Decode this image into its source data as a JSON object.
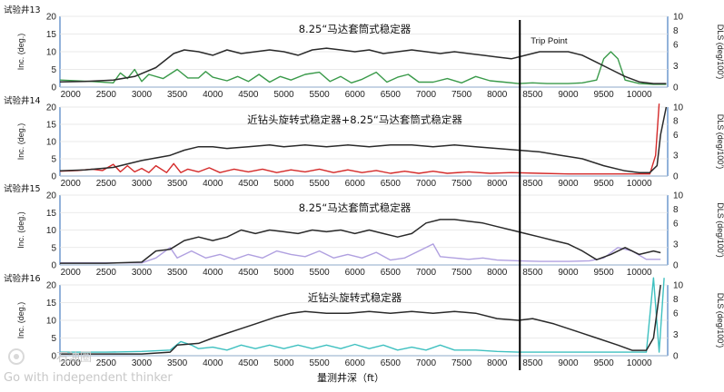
{
  "chart_data": [
    {
      "type": "line",
      "well_label": "试验井13",
      "title": "8.25“马达套筒式稳定器",
      "ylabel_left": "Inc. (deg.)",
      "ylabel_right": "DLS (deg/100’)",
      "ylim_left": [
        0,
        20
      ],
      "yticks_left": [
        0,
        5,
        10,
        15,
        20
      ],
      "ylim_right": [
        0,
        10
      ],
      "yticks_right": [
        0,
        3,
        6,
        8,
        10
      ],
      "x_ticks": [
        2000,
        2500,
        3000,
        3500,
        4000,
        4500,
        5000,
        5500,
        6000,
        6500,
        7000,
        7500,
        8000,
        8500,
        9000,
        9500,
        10000
      ],
      "xlim": [
        1850,
        10400
      ],
      "inc_color": "#2a2a2a",
      "dls_color": "#3a9a4a",
      "inc": [
        [
          1850,
          1.5
        ],
        [
          2200,
          1.6
        ],
        [
          2600,
          2
        ],
        [
          2900,
          3
        ],
        [
          3200,
          5.5
        ],
        [
          3450,
          9.5
        ],
        [
          3600,
          10.5
        ],
        [
          3800,
          10
        ],
        [
          4000,
          9
        ],
        [
          4200,
          10.5
        ],
        [
          4400,
          9.5
        ],
        [
          4600,
          10
        ],
        [
          4800,
          10.5
        ],
        [
          5000,
          10
        ],
        [
          5200,
          9
        ],
        [
          5400,
          10.5
        ],
        [
          5600,
          11
        ],
        [
          5800,
          10.5
        ],
        [
          6000,
          10
        ],
        [
          6200,
          10.5
        ],
        [
          6400,
          9.5
        ],
        [
          6600,
          10
        ],
        [
          6800,
          10.5
        ],
        [
          7000,
          10
        ],
        [
          7200,
          9.5
        ],
        [
          7400,
          10
        ],
        [
          7600,
          9.5
        ],
        [
          7800,
          9
        ],
        [
          8000,
          8.5
        ],
        [
          8200,
          8
        ],
        [
          8400,
          9
        ],
        [
          8600,
          10
        ],
        [
          8800,
          10
        ],
        [
          9000,
          10
        ],
        [
          9200,
          9
        ],
        [
          9400,
          7
        ],
        [
          9600,
          5
        ],
        [
          9800,
          3
        ],
        [
          10000,
          1.5
        ],
        [
          10200,
          1
        ],
        [
          10380,
          1
        ]
      ],
      "dls": [
        [
          1850,
          1
        ],
        [
          2300,
          0.8
        ],
        [
          2600,
          0.6
        ],
        [
          2700,
          2
        ],
        [
          2800,
          1.2
        ],
        [
          2900,
          2.5
        ],
        [
          3000,
          0.8
        ],
        [
          3100,
          1.8
        ],
        [
          3300,
          1.2
        ],
        [
          3500,
          2.5
        ],
        [
          3650,
          1.3
        ],
        [
          3800,
          1.3
        ],
        [
          3900,
          2.2
        ],
        [
          4000,
          1.4
        ],
        [
          4200,
          0.9
        ],
        [
          4350,
          1.5
        ],
        [
          4500,
          0.8
        ],
        [
          4650,
          1.8
        ],
        [
          4800,
          0.7
        ],
        [
          4950,
          1.5
        ],
        [
          5100,
          1
        ],
        [
          5300,
          1.8
        ],
        [
          5500,
          2.1
        ],
        [
          5650,
          0.8
        ],
        [
          5800,
          1.5
        ],
        [
          5950,
          0.6
        ],
        [
          6100,
          1.1
        ],
        [
          6300,
          2.1
        ],
        [
          6450,
          0.7
        ],
        [
          6600,
          1.4
        ],
        [
          6750,
          1.8
        ],
        [
          6900,
          0.7
        ],
        [
          7100,
          0.7
        ],
        [
          7300,
          1.2
        ],
        [
          7500,
          0.6
        ],
        [
          7700,
          1.5
        ],
        [
          7900,
          0.9
        ],
        [
          8100,
          0.7
        ],
        [
          8300,
          0.5
        ],
        [
          8500,
          0.6
        ],
        [
          8700,
          0.5
        ],
        [
          9000,
          0.5
        ],
        [
          9200,
          0.6
        ],
        [
          9400,
          1
        ],
        [
          9500,
          4
        ],
        [
          9600,
          5
        ],
        [
          9700,
          4
        ],
        [
          9800,
          1
        ],
        [
          10000,
          0.5
        ],
        [
          10200,
          0.4
        ],
        [
          10380,
          0.4
        ]
      ]
    },
    {
      "type": "line",
      "well_label": "试验井14",
      "title": "近钻头旋转式稳定器+8.25“马达套筒式稳定器",
      "ylabel_left": "Inc. (deg.)",
      "ylabel_right": "DLS (deg/100’)",
      "ylim_left": [
        0,
        20
      ],
      "yticks_left": [
        0,
        5,
        10,
        15,
        20
      ],
      "ylim_right": [
        0,
        10
      ],
      "yticks_right": [
        0,
        3,
        6,
        8,
        10
      ],
      "x_ticks": [
        2000,
        2500,
        3000,
        3500,
        4000,
        4500,
        5000,
        5500,
        6000,
        6500,
        7000,
        7500,
        8000,
        8500,
        9000,
        9500,
        10000
      ],
      "xlim": [
        1850,
        10400
      ],
      "inc_color": "#2a2a2a",
      "dls_color": "#d42a2a",
      "inc": [
        [
          1850,
          1.5
        ],
        [
          2200,
          1.8
        ],
        [
          2600,
          2.5
        ],
        [
          3000,
          4.5
        ],
        [
          3400,
          6
        ],
        [
          3600,
          7.5
        ],
        [
          3800,
          8.5
        ],
        [
          4000,
          8.5
        ],
        [
          4200,
          8
        ],
        [
          4500,
          8.5
        ],
        [
          4800,
          9
        ],
        [
          5000,
          8.5
        ],
        [
          5300,
          9
        ],
        [
          5600,
          8.5
        ],
        [
          5900,
          9
        ],
        [
          6200,
          8.5
        ],
        [
          6500,
          9
        ],
        [
          6800,
          9
        ],
        [
          7100,
          8.5
        ],
        [
          7400,
          9
        ],
        [
          7700,
          8.5
        ],
        [
          8000,
          8
        ],
        [
          8300,
          7.5
        ],
        [
          8600,
          7
        ],
        [
          8900,
          6
        ],
        [
          9200,
          5
        ],
        [
          9500,
          3
        ],
        [
          9800,
          1.5
        ],
        [
          10000,
          1
        ],
        [
          10150,
          1
        ],
        [
          10250,
          3
        ],
        [
          10300,
          12
        ],
        [
          10380,
          20
        ]
      ],
      "dls": [
        [
          1850,
          0.7
        ],
        [
          2100,
          0.8
        ],
        [
          2300,
          1
        ],
        [
          2450,
          0.8
        ],
        [
          2600,
          1.7
        ],
        [
          2700,
          0.6
        ],
        [
          2800,
          1.5
        ],
        [
          2900,
          0.6
        ],
        [
          3000,
          1.1
        ],
        [
          3100,
          0.5
        ],
        [
          3200,
          1.5
        ],
        [
          3350,
          0.5
        ],
        [
          3450,
          1.8
        ],
        [
          3550,
          0.5
        ],
        [
          3650,
          1
        ],
        [
          3800,
          0.6
        ],
        [
          3950,
          1.2
        ],
        [
          4100,
          0.5
        ],
        [
          4300,
          1
        ],
        [
          4500,
          0.6
        ],
        [
          4700,
          1
        ],
        [
          4900,
          0.5
        ],
        [
          5100,
          0.9
        ],
        [
          5300,
          0.6
        ],
        [
          5500,
          1
        ],
        [
          5700,
          0.5
        ],
        [
          5900,
          0.9
        ],
        [
          6100,
          0.5
        ],
        [
          6300,
          0.8
        ],
        [
          6500,
          0.4
        ],
        [
          6700,
          0.7
        ],
        [
          6900,
          0.4
        ],
        [
          7100,
          0.7
        ],
        [
          7300,
          0.4
        ],
        [
          7600,
          0.6
        ],
        [
          7900,
          0.4
        ],
        [
          8200,
          0.5
        ],
        [
          8600,
          0.4
        ],
        [
          9000,
          0.3
        ],
        [
          9400,
          0.3
        ],
        [
          9800,
          0.3
        ],
        [
          10150,
          0.3
        ],
        [
          10230,
          3
        ],
        [
          10280,
          10.5
        ]
      ]
    },
    {
      "type": "line",
      "well_label": "试验井15",
      "title": "8.25“马达套筒式稳定器",
      "ylabel_left": "Inc. (deg.)",
      "ylabel_right": "DLS (deg/100’)",
      "ylim_left": [
        0,
        20
      ],
      "yticks_left": [
        0,
        5,
        10,
        15,
        20
      ],
      "ylim_right": [
        0,
        10
      ],
      "yticks_right": [
        0,
        3,
        6,
        8,
        10
      ],
      "x_ticks": [
        2000,
        2500,
        3000,
        3500,
        4000,
        4500,
        5000,
        5500,
        6000,
        6500,
        7000,
        7500,
        8000,
        8500,
        9000,
        9500,
        10000
      ],
      "xlim": [
        1850,
        10400
      ],
      "inc_color": "#2a2a2a",
      "dls_color": "#b0a0e0",
      "inc": [
        [
          1850,
          0.5
        ],
        [
          2500,
          0.5
        ],
        [
          3000,
          0.8
        ],
        [
          3200,
          4
        ],
        [
          3400,
          4.5
        ],
        [
          3600,
          7
        ],
        [
          3800,
          8
        ],
        [
          4000,
          7
        ],
        [
          4200,
          8
        ],
        [
          4400,
          10
        ],
        [
          4600,
          9
        ],
        [
          4800,
          10
        ],
        [
          5000,
          9.5
        ],
        [
          5200,
          9
        ],
        [
          5400,
          10
        ],
        [
          5600,
          9.5
        ],
        [
          5800,
          10
        ],
        [
          6000,
          9
        ],
        [
          6200,
          10
        ],
        [
          6400,
          9
        ],
        [
          6600,
          8
        ],
        [
          6800,
          9
        ],
        [
          7000,
          12
        ],
        [
          7200,
          13
        ],
        [
          7400,
          13
        ],
        [
          7600,
          12.5
        ],
        [
          7800,
          12
        ],
        [
          8000,
          11
        ],
        [
          8200,
          10
        ],
        [
          8400,
          9
        ],
        [
          8600,
          8
        ],
        [
          8800,
          7
        ],
        [
          9000,
          6
        ],
        [
          9200,
          4
        ],
        [
          9400,
          1.5
        ],
        [
          9600,
          3
        ],
        [
          9800,
          5
        ],
        [
          10000,
          3
        ],
        [
          10200,
          4
        ],
        [
          10300,
          3.5
        ]
      ],
      "dls": [
        [
          1850,
          0.3
        ],
        [
          3000,
          0.3
        ],
        [
          3200,
          1
        ],
        [
          3400,
          2.5
        ],
        [
          3500,
          1
        ],
        [
          3700,
          2
        ],
        [
          3900,
          1
        ],
        [
          4100,
          1.5
        ],
        [
          4300,
          0.8
        ],
        [
          4500,
          1.5
        ],
        [
          4700,
          1
        ],
        [
          4900,
          2
        ],
        [
          5100,
          1.5
        ],
        [
          5300,
          1.2
        ],
        [
          5500,
          2
        ],
        [
          5700,
          1
        ],
        [
          5900,
          1.5
        ],
        [
          6100,
          1
        ],
        [
          6300,
          1.8
        ],
        [
          6500,
          0.7
        ],
        [
          6700,
          1
        ],
        [
          6900,
          2
        ],
        [
          7100,
          3
        ],
        [
          7200,
          1.2
        ],
        [
          7400,
          1
        ],
        [
          7600,
          0.8
        ],
        [
          7800,
          1
        ],
        [
          8000,
          0.7
        ],
        [
          8300,
          0.6
        ],
        [
          8600,
          0.5
        ],
        [
          9000,
          0.5
        ],
        [
          9300,
          0.6
        ],
        [
          9500,
          1
        ],
        [
          9700,
          2.5
        ],
        [
          9900,
          2
        ],
        [
          10100,
          0.8
        ],
        [
          10300,
          0.8
        ]
      ]
    },
    {
      "type": "line",
      "well_label": "试验井16",
      "title": "近钻头旋转式稳定器",
      "ylabel_left": "Inc. (deg.)",
      "ylabel_right": "DLS (deg/100’)",
      "ylim_left": [
        0,
        20
      ],
      "yticks_left": [
        0,
        5,
        10,
        15,
        20
      ],
      "ylim_right": [
        0,
        10
      ],
      "yticks_right": [
        0,
        3,
        6,
        8,
        10
      ],
      "x_ticks": [
        2000,
        2500,
        3000,
        3500,
        4000,
        4500,
        5000,
        5500,
        6000,
        6500,
        7000,
        7500,
        8000,
        8500,
        9000,
        9500,
        10000
      ],
      "xlim": [
        1850,
        10400
      ],
      "inc_color": "#2a2a2a",
      "dls_color": "#3ec0c0",
      "inc": [
        [
          1850,
          0.5
        ],
        [
          3000,
          0.5
        ],
        [
          3400,
          1
        ],
        [
          3500,
          3
        ],
        [
          3800,
          3.5
        ],
        [
          4000,
          5
        ],
        [
          4300,
          7
        ],
        [
          4600,
          9
        ],
        [
          4900,
          11
        ],
        [
          5100,
          12
        ],
        [
          5300,
          12.5
        ],
        [
          5600,
          12
        ],
        [
          5900,
          12
        ],
        [
          6200,
          12.5
        ],
        [
          6500,
          12
        ],
        [
          6800,
          12.5
        ],
        [
          7100,
          12
        ],
        [
          7400,
          12.5
        ],
        [
          7700,
          12
        ],
        [
          8000,
          10.5
        ],
        [
          8300,
          10
        ],
        [
          8500,
          10.5
        ],
        [
          8800,
          9
        ],
        [
          9100,
          7
        ],
        [
          9400,
          5
        ],
        [
          9700,
          3
        ],
        [
          9900,
          1.5
        ],
        [
          10100,
          1.5
        ],
        [
          10200,
          5
        ],
        [
          10300,
          20
        ]
      ],
      "dls": [
        [
          1850,
          0.5
        ],
        [
          2500,
          0.5
        ],
        [
          3000,
          0.6
        ],
        [
          3400,
          0.8
        ],
        [
          3550,
          2
        ],
        [
          3700,
          1.5
        ],
        [
          3800,
          1
        ],
        [
          4000,
          1.2
        ],
        [
          4200,
          0.8
        ],
        [
          4400,
          1.5
        ],
        [
          4600,
          1
        ],
        [
          4800,
          1.5
        ],
        [
          5000,
          1
        ],
        [
          5200,
          1.5
        ],
        [
          5400,
          1
        ],
        [
          5600,
          1.5
        ],
        [
          5800,
          1
        ],
        [
          6000,
          1.6
        ],
        [
          6200,
          1
        ],
        [
          6400,
          1.5
        ],
        [
          6600,
          0.8
        ],
        [
          6800,
          1.2
        ],
        [
          7000,
          0.8
        ],
        [
          7200,
          1.5
        ],
        [
          7400,
          0.8
        ],
        [
          7700,
          0.8
        ],
        [
          8000,
          0.6
        ],
        [
          8300,
          0.5
        ],
        [
          8700,
          0.5
        ],
        [
          9100,
          0.5
        ],
        [
          9500,
          0.5
        ],
        [
          9900,
          0.5
        ],
        [
          10100,
          0.5
        ],
        [
          10200,
          11
        ],
        [
          10280,
          0.5
        ],
        [
          10350,
          11
        ]
      ]
    }
  ],
  "annotation": {
    "trip_point_label": "Trip Point",
    "trip_point_depth": 8320
  },
  "xlabel": "量测井深（ft）",
  "watermark": {
    "brand": "石油圈",
    "slogan": "Go with independent thinker"
  }
}
